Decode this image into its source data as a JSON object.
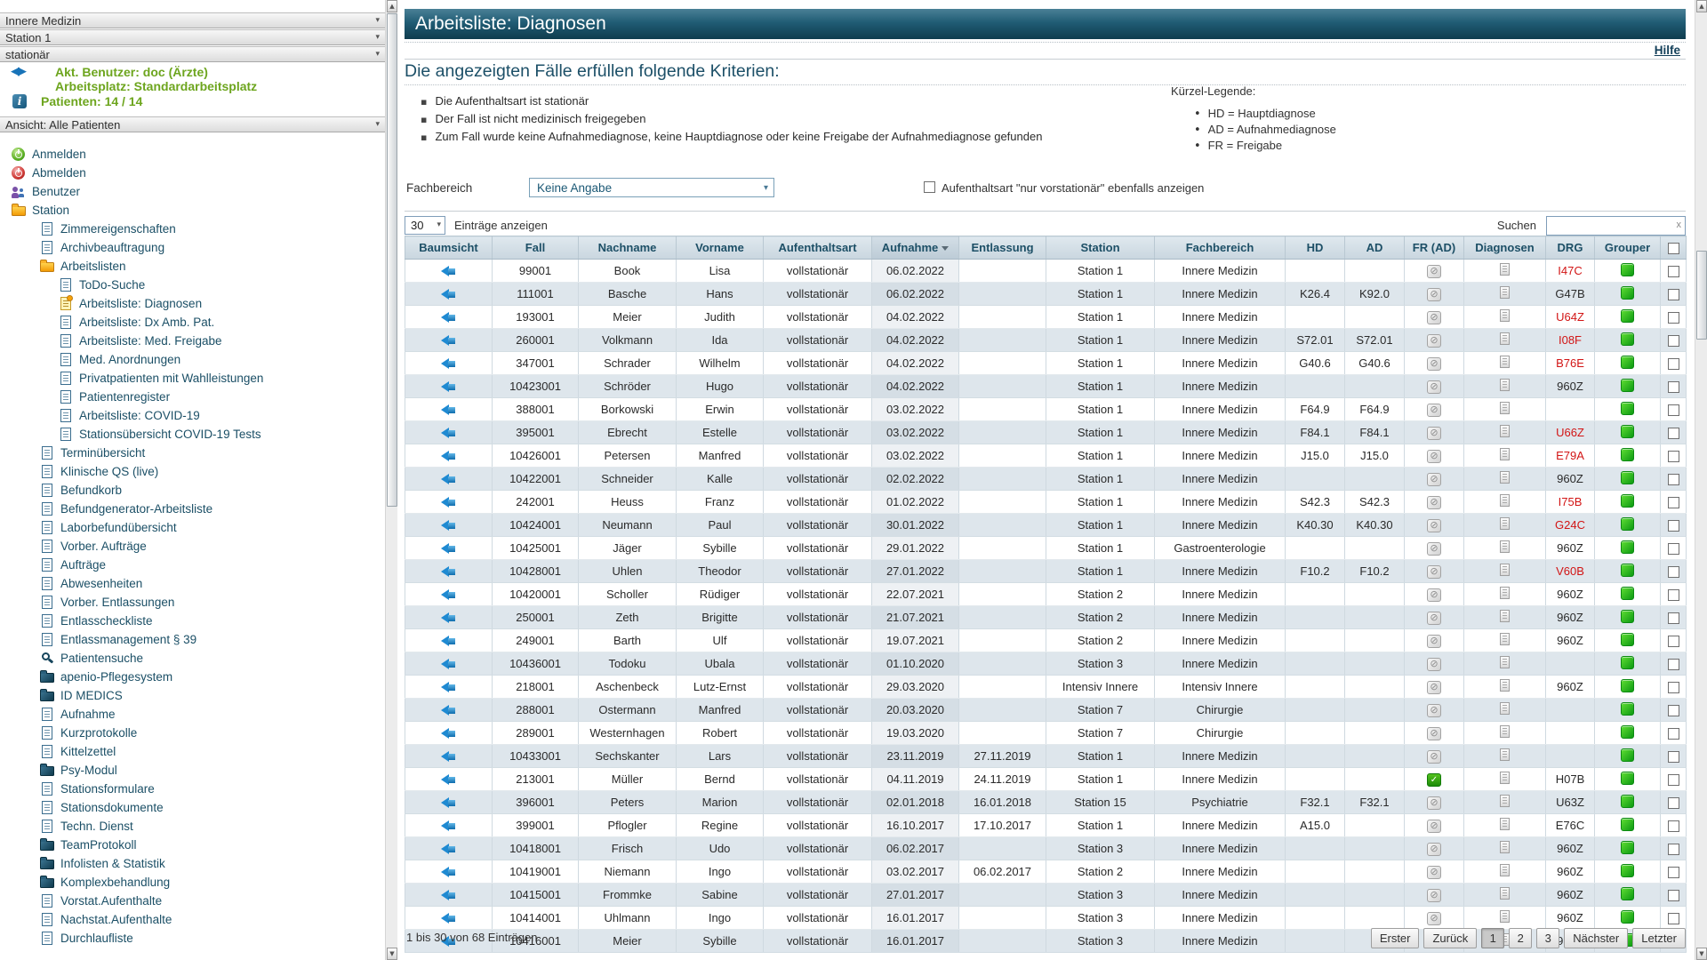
{
  "sidebar": {
    "selectors": [
      "Innere Medizin",
      "Station 1",
      "stationär"
    ],
    "user": {
      "line1": "Akt. Benutzer: doc (Ärzte)",
      "line2": "Arbeitsplatz: Standardarbeitsplatz"
    },
    "patients_label": "Patienten: 14 / 14",
    "view_selector": "Ansicht: Alle Patienten",
    "nav": [
      {
        "label": "Anmelden",
        "icon": "power-green",
        "level": 0
      },
      {
        "label": "Abmelden",
        "icon": "power-red",
        "level": 0
      },
      {
        "label": "Benutzer",
        "icon": "users",
        "level": 0
      },
      {
        "label": "Station",
        "icon": "folder",
        "level": 0
      },
      {
        "label": "Zimmereigenschaften",
        "icon": "doc",
        "level": 1
      },
      {
        "label": "Archivbeauftragung",
        "icon": "doc",
        "level": 1
      },
      {
        "label": "Arbeitslisten",
        "icon": "folder",
        "level": 1
      },
      {
        "label": "ToDo-Suche",
        "icon": "doc",
        "level": 2
      },
      {
        "label": "Arbeitsliste: Diagnosen",
        "icon": "doc-selected",
        "level": 2,
        "selected": true
      },
      {
        "label": "Arbeitsliste: Dx Amb. Pat.",
        "icon": "doc",
        "level": 2
      },
      {
        "label": "Arbeitsliste: Med. Freigabe",
        "icon": "doc",
        "level": 2
      },
      {
        "label": "Med. Anordnungen",
        "icon": "doc",
        "level": 2
      },
      {
        "label": "Privatpatienten mit Wahlleistungen",
        "icon": "doc",
        "level": 2
      },
      {
        "label": "Patientenregister",
        "icon": "doc",
        "level": 2
      },
      {
        "label": "Arbeitsliste: COVID-19",
        "icon": "doc",
        "level": 2
      },
      {
        "label": "Stationsübersicht COVID-19 Tests",
        "icon": "doc",
        "level": 2
      },
      {
        "label": "Terminübersicht",
        "icon": "doc",
        "level": 1
      },
      {
        "label": "Klinische QS (live)",
        "icon": "doc",
        "level": 1
      },
      {
        "label": "Befundkorb",
        "icon": "doc",
        "level": 1
      },
      {
        "label": "Befundgenerator-Arbeitsliste",
        "icon": "doc",
        "level": 1
      },
      {
        "label": "Laborbefundübersicht",
        "icon": "doc",
        "level": 1
      },
      {
        "label": "Vorber. Aufträge",
        "icon": "doc",
        "level": 1
      },
      {
        "label": "Aufträge",
        "icon": "doc",
        "level": 1
      },
      {
        "label": "Abwesenheiten",
        "icon": "doc",
        "level": 1
      },
      {
        "label": "Vorber. Entlassungen",
        "icon": "doc",
        "level": 1
      },
      {
        "label": "Entlasscheckliste",
        "icon": "doc",
        "level": 1
      },
      {
        "label": "Entlassmanagement § 39",
        "icon": "doc",
        "level": 1
      },
      {
        "label": "Patientensuche",
        "icon": "search",
        "level": 1
      },
      {
        "label": "apenio-Pflegesystem",
        "icon": "folder-dark",
        "level": 1
      },
      {
        "label": "ID MEDICS",
        "icon": "folder-dark",
        "level": 1
      },
      {
        "label": "Aufnahme",
        "icon": "doc",
        "level": 1
      },
      {
        "label": "Kurzprotokolle",
        "icon": "doc",
        "level": 1
      },
      {
        "label": "Kittelzettel",
        "icon": "doc",
        "level": 1
      },
      {
        "label": "Psy-Modul",
        "icon": "folder-dark",
        "level": 1
      },
      {
        "label": "Stationsformulare",
        "icon": "doc",
        "level": 1
      },
      {
        "label": "Stationsdokumente",
        "icon": "doc",
        "level": 1
      },
      {
        "label": "Techn. Dienst",
        "icon": "doc",
        "level": 1
      },
      {
        "label": "TeamProtokoll",
        "icon": "folder-dark",
        "level": 1
      },
      {
        "label": "Infolisten & Statistik",
        "icon": "folder-dark",
        "level": 1
      },
      {
        "label": "Komplexbehandlung",
        "icon": "folder-dark",
        "level": 1
      },
      {
        "label": "Vorstat.Aufenthalte",
        "icon": "doc",
        "level": 1
      },
      {
        "label": "Nachstat.Aufenthalte",
        "icon": "doc",
        "level": 1
      },
      {
        "label": "Durchlaufliste",
        "icon": "doc",
        "level": 1
      }
    ]
  },
  "main": {
    "title": "Arbeitsliste: Diagnosen",
    "help_label": "Hilfe",
    "criteria": {
      "heading": "Die angezeigten Fälle erfüllen folgende Kriterien:",
      "items": [
        "Die Aufenthaltsart ist stationär",
        "Der Fall ist nicht medizinisch freigegeben",
        "Zum Fall wurde keine Aufnahmediagnose, keine Hauptdiagnose oder keine Freigabe der Aufnahmediagnose gefunden"
      ]
    },
    "legend": {
      "heading": "Kürzel-Legende:",
      "items": [
        "HD = Hauptdiagnose",
        "AD = Aufnahmediagnose",
        "FR = Freigabe"
      ]
    },
    "filters": {
      "fachbereich_label": "Fachbereich",
      "fachbereich_value": "Keine Angabe",
      "vorstationaer_checkbox_label": "Aufenthaltsart \"nur vorstationär\" ebenfalls anzeigen",
      "vorstationaer_checked": false
    },
    "controls": {
      "page_size": "30",
      "entries_label": "Einträge anzeigen",
      "search_label": "Suchen",
      "search_value": "",
      "clear_label": "x"
    },
    "table": {
      "columns": [
        "Baumsicht",
        "Fall",
        "Nachname",
        "Vorname",
        "Aufenthaltsart",
        "Aufnahme",
        "Entlassung",
        "Station",
        "Fachbereich",
        "HD",
        "AD",
        "FR (AD)",
        "Diagnosen",
        "DRG",
        "Grouper"
      ],
      "sort_column": "Aufnahme",
      "sort_direction": "desc",
      "rows": [
        {
          "fall": "99001",
          "nachname": "Book",
          "vorname": "Lisa",
          "aufenthaltsart": "vollstationär",
          "aufnahme": "06.02.2022",
          "entlassung": "",
          "station": "Station 1",
          "fachbereich": "Innere Medizin",
          "hd": "",
          "ad": "",
          "fr": "stamp",
          "drg": "I47C",
          "drg_red": true
        },
        {
          "fall": "111001",
          "nachname": "Basche",
          "vorname": "Hans",
          "aufenthaltsart": "vollstationär",
          "aufnahme": "06.02.2022",
          "entlassung": "",
          "station": "Station 1",
          "fachbereich": "Innere Medizin",
          "hd": "K26.4",
          "ad": "K92.0",
          "fr": "stamp",
          "drg": "G47B",
          "drg_red": false
        },
        {
          "fall": "193001",
          "nachname": "Meier",
          "vorname": "Judith",
          "aufenthaltsart": "vollstationär",
          "aufnahme": "04.02.2022",
          "entlassung": "",
          "station": "Station 1",
          "fachbereich": "Innere Medizin",
          "hd": "",
          "ad": "",
          "fr": "stamp",
          "drg": "U64Z",
          "drg_red": true
        },
        {
          "fall": "260001",
          "nachname": "Volkmann",
          "vorname": "Ida",
          "aufenthaltsart": "vollstationär",
          "aufnahme": "04.02.2022",
          "entlassung": "",
          "station": "Station 1",
          "fachbereich": "Innere Medizin",
          "hd": "S72.01",
          "ad": "S72.01",
          "fr": "stamp",
          "drg": "I08F",
          "drg_red": true
        },
        {
          "fall": "347001",
          "nachname": "Schrader",
          "vorname": "Wilhelm",
          "aufenthaltsart": "vollstationär",
          "aufnahme": "04.02.2022",
          "entlassung": "",
          "station": "Station 1",
          "fachbereich": "Innere Medizin",
          "hd": "G40.6",
          "ad": "G40.6",
          "fr": "stamp",
          "drg": "B76E",
          "drg_red": true
        },
        {
          "fall": "10423001",
          "nachname": "Schröder",
          "vorname": "Hugo",
          "aufenthaltsart": "vollstationär",
          "aufnahme": "04.02.2022",
          "entlassung": "",
          "station": "Station 1",
          "fachbereich": "Innere Medizin",
          "hd": "",
          "ad": "",
          "fr": "stamp",
          "drg": "960Z",
          "drg_red": false
        },
        {
          "fall": "388001",
          "nachname": "Borkowski",
          "vorname": "Erwin",
          "aufenthaltsart": "vollstationär",
          "aufnahme": "03.02.2022",
          "entlassung": "",
          "station": "Station 1",
          "fachbereich": "Innere Medizin",
          "hd": "F64.9",
          "ad": "F64.9",
          "fr": "stamp",
          "drg": "",
          "drg_red": false
        },
        {
          "fall": "395001",
          "nachname": "Ebrecht",
          "vorname": "Estelle",
          "aufenthaltsart": "vollstationär",
          "aufnahme": "03.02.2022",
          "entlassung": "",
          "station": "Station 1",
          "fachbereich": "Innere Medizin",
          "hd": "F84.1",
          "ad": "F84.1",
          "fr": "stamp",
          "drg": "U66Z",
          "drg_red": true
        },
        {
          "fall": "10426001",
          "nachname": "Petersen",
          "vorname": "Manfred",
          "aufenthaltsart": "vollstationär",
          "aufnahme": "03.02.2022",
          "entlassung": "",
          "station": "Station 1",
          "fachbereich": "Innere Medizin",
          "hd": "J15.0",
          "ad": "J15.0",
          "fr": "stamp",
          "drg": "E79A",
          "drg_red": true
        },
        {
          "fall": "10422001",
          "nachname": "Schneider",
          "vorname": "Kalle",
          "aufenthaltsart": "vollstationär",
          "aufnahme": "02.02.2022",
          "entlassung": "",
          "station": "Station 1",
          "fachbereich": "Innere Medizin",
          "hd": "",
          "ad": "",
          "fr": "stamp",
          "drg": "960Z",
          "drg_red": false
        },
        {
          "fall": "242001",
          "nachname": "Heuss",
          "vorname": "Franz",
          "aufenthaltsart": "vollstationär",
          "aufnahme": "01.02.2022",
          "entlassung": "",
          "station": "Station 1",
          "fachbereich": "Innere Medizin",
          "hd": "S42.3",
          "ad": "S42.3",
          "fr": "stamp",
          "drg": "I75B",
          "drg_red": true
        },
        {
          "fall": "10424001",
          "nachname": "Neumann",
          "vorname": "Paul",
          "aufenthaltsart": "vollstationär",
          "aufnahme": "30.01.2022",
          "entlassung": "",
          "station": "Station 1",
          "fachbereich": "Innere Medizin",
          "hd": "K40.30",
          "ad": "K40.30",
          "fr": "stamp",
          "drg": "G24C",
          "drg_red": true
        },
        {
          "fall": "10425001",
          "nachname": "Jäger",
          "vorname": "Sybille",
          "aufenthaltsart": "vollstationär",
          "aufnahme": "29.01.2022",
          "entlassung": "",
          "station": "Station 1",
          "fachbereich": "Gastroenterologie",
          "hd": "",
          "ad": "",
          "fr": "stamp",
          "drg": "960Z",
          "drg_red": false
        },
        {
          "fall": "10428001",
          "nachname": "Uhlen",
          "vorname": "Theodor",
          "aufenthaltsart": "vollstationär",
          "aufnahme": "27.01.2022",
          "entlassung": "",
          "station": "Station 1",
          "fachbereich": "Innere Medizin",
          "hd": "F10.2",
          "ad": "F10.2",
          "fr": "stamp",
          "drg": "V60B",
          "drg_red": true
        },
        {
          "fall": "10420001",
          "nachname": "Scholler",
          "vorname": "Rüdiger",
          "aufenthaltsart": "vollstationär",
          "aufnahme": "22.07.2021",
          "entlassung": "",
          "station": "Station 2",
          "fachbereich": "Innere Medizin",
          "hd": "",
          "ad": "",
          "fr": "stamp",
          "drg": "960Z",
          "drg_red": false
        },
        {
          "fall": "250001",
          "nachname": "Zeth",
          "vorname": "Brigitte",
          "aufenthaltsart": "vollstationär",
          "aufnahme": "21.07.2021",
          "entlassung": "",
          "station": "Station 2",
          "fachbereich": "Innere Medizin",
          "hd": "",
          "ad": "",
          "fr": "stamp",
          "drg": "960Z",
          "drg_red": false
        },
        {
          "fall": "249001",
          "nachname": "Barth",
          "vorname": "Ulf",
          "aufenthaltsart": "vollstationär",
          "aufnahme": "19.07.2021",
          "entlassung": "",
          "station": "Station 2",
          "fachbereich": "Innere Medizin",
          "hd": "",
          "ad": "",
          "fr": "stamp",
          "drg": "960Z",
          "drg_red": false
        },
        {
          "fall": "10436001",
          "nachname": "Todoku",
          "vorname": "Ubala",
          "aufenthaltsart": "vollstationär",
          "aufnahme": "01.10.2020",
          "entlassung": "",
          "station": "Station 3",
          "fachbereich": "Innere Medizin",
          "hd": "",
          "ad": "",
          "fr": "stamp",
          "drg": "",
          "drg_red": false
        },
        {
          "fall": "218001",
          "nachname": "Aschenbeck",
          "vorname": "Lutz-Ernst",
          "aufenthaltsart": "vollstationär",
          "aufnahme": "29.03.2020",
          "entlassung": "",
          "station": "Intensiv Innere",
          "fachbereich": "Intensiv Innere",
          "hd": "",
          "ad": "",
          "fr": "stamp",
          "drg": "960Z",
          "drg_red": false
        },
        {
          "fall": "288001",
          "nachname": "Ostermann",
          "vorname": "Manfred",
          "aufenthaltsart": "vollstationär",
          "aufnahme": "20.03.2020",
          "entlassung": "",
          "station": "Station 7",
          "fachbereich": "Chirurgie",
          "hd": "",
          "ad": "",
          "fr": "stamp",
          "drg": "",
          "drg_red": false
        },
        {
          "fall": "289001",
          "nachname": "Westernhagen",
          "vorname": "Robert",
          "aufenthaltsart": "vollstationär",
          "aufnahme": "19.03.2020",
          "entlassung": "",
          "station": "Station 7",
          "fachbereich": "Chirurgie",
          "hd": "",
          "ad": "",
          "fr": "stamp",
          "drg": "",
          "drg_red": false
        },
        {
          "fall": "10433001",
          "nachname": "Sechskanter",
          "vorname": "Lars",
          "aufenthaltsart": "vollstationär",
          "aufnahme": "23.11.2019",
          "entlassung": "27.11.2019",
          "station": "Station 1",
          "fachbereich": "Innere Medizin",
          "hd": "",
          "ad": "",
          "fr": "stamp",
          "drg": "",
          "drg_red": false
        },
        {
          "fall": "213001",
          "nachname": "Müller",
          "vorname": "Bernd",
          "aufenthaltsart": "vollstationär",
          "aufnahme": "04.11.2019",
          "entlassung": "24.11.2019",
          "station": "Station 1",
          "fachbereich": "Innere Medizin",
          "hd": "",
          "ad": "",
          "fr": "checked",
          "drg": "H07B",
          "drg_red": false
        },
        {
          "fall": "396001",
          "nachname": "Peters",
          "vorname": "Marion",
          "aufenthaltsart": "vollstationär",
          "aufnahme": "02.01.2018",
          "entlassung": "16.01.2018",
          "station": "Station 15",
          "fachbereich": "Psychiatrie",
          "hd": "F32.1",
          "ad": "F32.1",
          "fr": "stamp",
          "drg": "U63Z",
          "drg_red": false
        },
        {
          "fall": "399001",
          "nachname": "Pflogler",
          "vorname": "Regine",
          "aufenthaltsart": "vollstationär",
          "aufnahme": "16.10.2017",
          "entlassung": "17.10.2017",
          "station": "Station 1",
          "fachbereich": "Innere Medizin",
          "hd": "A15.0",
          "ad": "",
          "fr": "stamp",
          "drg": "E76C",
          "drg_red": false
        },
        {
          "fall": "10418001",
          "nachname": "Frisch",
          "vorname": "Udo",
          "aufenthaltsart": "vollstationär",
          "aufnahme": "06.02.2017",
          "entlassung": "",
          "station": "Station 3",
          "fachbereich": "Innere Medizin",
          "hd": "",
          "ad": "",
          "fr": "stamp",
          "drg": "960Z",
          "drg_red": false
        },
        {
          "fall": "10419001",
          "nachname": "Niemann",
          "vorname": "Ingo",
          "aufenthaltsart": "vollstationär",
          "aufnahme": "03.02.2017",
          "entlassung": "06.02.2017",
          "station": "Station 2",
          "fachbereich": "Innere Medizin",
          "hd": "",
          "ad": "",
          "fr": "stamp",
          "drg": "960Z",
          "drg_red": false
        },
        {
          "fall": "10415001",
          "nachname": "Frommke",
          "vorname": "Sabine",
          "aufenthaltsart": "vollstationär",
          "aufnahme": "27.01.2017",
          "entlassung": "",
          "station": "Station 3",
          "fachbereich": "Innere Medizin",
          "hd": "",
          "ad": "",
          "fr": "stamp",
          "drg": "960Z",
          "drg_red": false
        },
        {
          "fall": "10414001",
          "nachname": "Uhlmann",
          "vorname": "Ingo",
          "aufenthaltsart": "vollstationär",
          "aufnahme": "16.01.2017",
          "entlassung": "",
          "station": "Station 3",
          "fachbereich": "Innere Medizin",
          "hd": "",
          "ad": "",
          "fr": "stamp",
          "drg": "960Z",
          "drg_red": false
        },
        {
          "fall": "10416001",
          "nachname": "Meier",
          "vorname": "Sybille",
          "aufenthaltsart": "vollstationär",
          "aufnahme": "16.01.2017",
          "entlassung": "",
          "station": "Station 3",
          "fachbereich": "Innere Medizin",
          "hd": "",
          "ad": "",
          "fr": "stamp",
          "drg": "960Z",
          "drg_red": false
        }
      ]
    },
    "footer": {
      "info": "1 bis 30 von 68 Einträgen",
      "pagination": [
        "Erster",
        "Zurück",
        "1",
        "2",
        "3",
        "Nächster",
        "Letzter"
      ],
      "active_page": "1"
    }
  },
  "colors": {
    "header_bar": "#1d5a72",
    "accent_text": "#1b4f66",
    "user_green": "#6da51e",
    "drg_alert": "#d21515",
    "grouper_green": "#0c9a12",
    "row_stripe": "#dee6ec"
  }
}
